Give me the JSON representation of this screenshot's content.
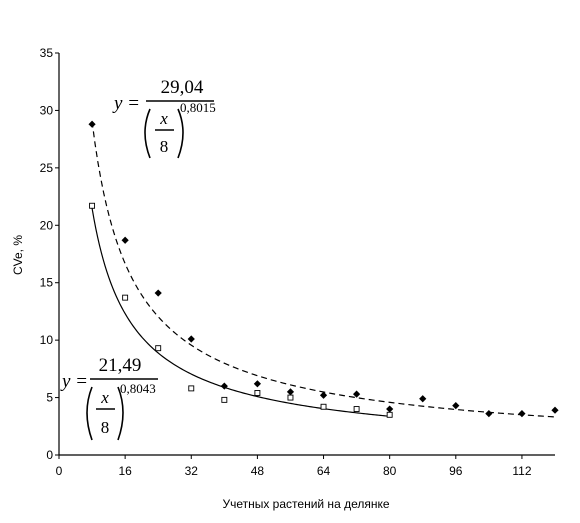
{
  "chart_data": {
    "type": "scatter",
    "xlabel": "Учетных растений на делянке",
    "ylabel": "CVe, %",
    "xlim": [
      0,
      120
    ],
    "ylim": [
      0,
      35
    ],
    "x_ticks": [
      "0",
      "16",
      "32",
      "48",
      "64",
      "80",
      "96",
      "112"
    ],
    "y_ticks": [
      "0",
      "5",
      "10",
      "15",
      "20",
      "25",
      "30",
      "35"
    ],
    "grid": false,
    "legend": "none",
    "series": [
      {
        "marker": "filled-diamond",
        "x": [
          8,
          16,
          24,
          32,
          40,
          48,
          56,
          64,
          72,
          80,
          88,
          96,
          104,
          112,
          120
        ],
        "y": [
          28.8,
          18.7,
          14.1,
          10.1,
          6.0,
          6.2,
          5.5,
          5.2,
          5.3,
          4.0,
          4.9,
          4.3,
          3.6,
          3.6,
          3.9
        ],
        "fit": {
          "a": 29.04,
          "b": 0.8015,
          "x_from": 8,
          "x_to": 120,
          "style": "dashed"
        }
      },
      {
        "marker": "open-square",
        "x": [
          8,
          16,
          24,
          32,
          40,
          48,
          56,
          64,
          72,
          80
        ],
        "y": [
          21.7,
          13.7,
          9.3,
          5.8,
          4.8,
          5.4,
          5.0,
          4.2,
          4.0,
          3.5
        ],
        "fit": {
          "a": 21.49,
          "b": 0.8043,
          "x_from": 8,
          "x_to": 80,
          "style": "solid"
        }
      }
    ],
    "annotations": [
      {
        "lhs": "y =",
        "numerator": "29,04",
        "frac_top": "x",
        "frac_bottom": "8",
        "exponent": "0,8015"
      },
      {
        "lhs": "y =",
        "numerator": "21,49",
        "frac_top": "x",
        "frac_bottom": "8",
        "exponent": "0,8043"
      }
    ],
    "colors": {
      "axis": "#000000",
      "marks": "#000000"
    }
  }
}
